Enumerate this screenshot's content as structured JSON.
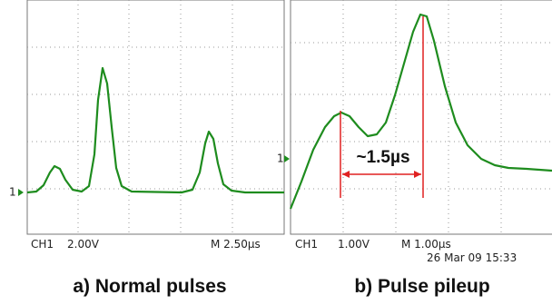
{
  "panels": [
    {
      "channel": "CH1",
      "volts": "2.00V",
      "timebase": "M 2.50µs",
      "marker": "1",
      "caption": "a) Normal pulses"
    },
    {
      "channel": "CH1",
      "volts": "1.00V",
      "timebase": "M 1.00µs",
      "date": "26 Mar 09 15:33",
      "marker": "1",
      "annotation": "~1.5µs",
      "caption": "b) Pulse pileup"
    }
  ]
}
